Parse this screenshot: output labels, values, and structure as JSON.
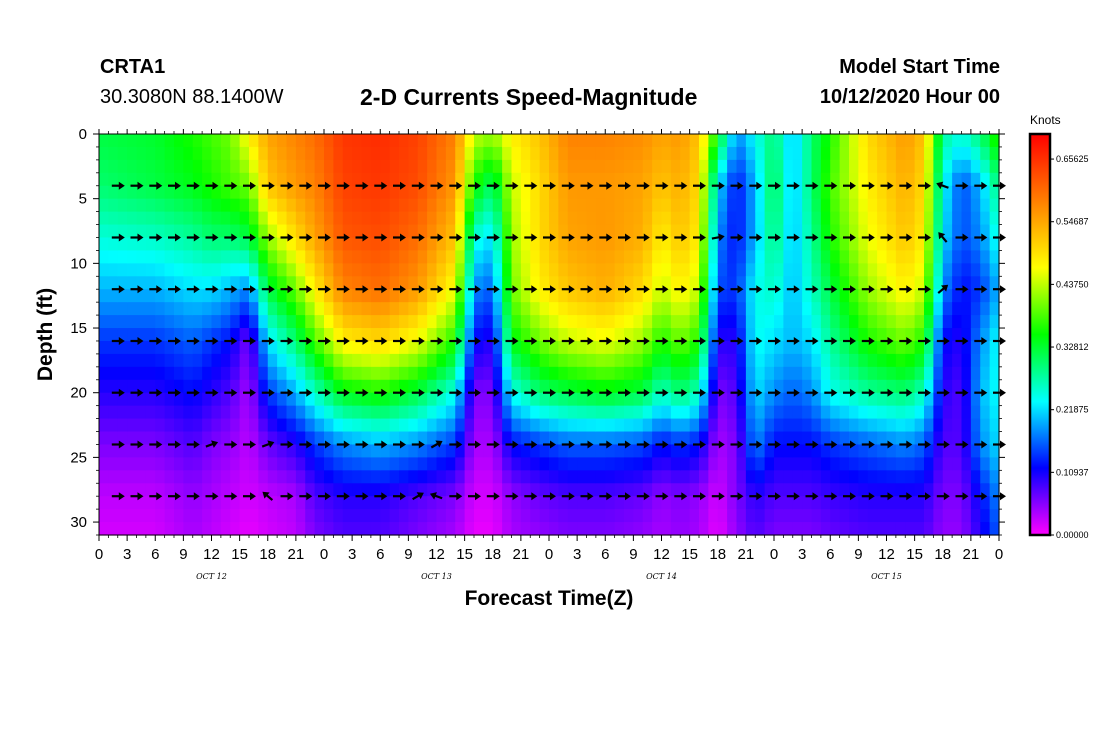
{
  "header": {
    "station_id": "CRTA1",
    "station_coords": "30.3080N 88.1400W",
    "title": "2-D Currents Speed-Magnitude",
    "model_start_label": "Model Start Time",
    "model_start_value": "10/12/2020 Hour 00"
  },
  "chart_data": {
    "type": "heatmap",
    "title": "2-D Currents Speed-Magnitude",
    "xlabel": "Forecast Time(Z)",
    "ylabel": "Depth (ft)",
    "x_range_hours": [
      0,
      96
    ],
    "x_tick_step_hours": 3,
    "x_tick_labels": [
      "0",
      "3",
      "6",
      "9",
      "12",
      "15",
      "18",
      "21",
      "0",
      "3",
      "6",
      "9",
      "12",
      "15",
      "18",
      "21",
      "0",
      "3",
      "6",
      "9",
      "12",
      "15",
      "18",
      "21",
      "0",
      "3",
      "6",
      "9",
      "12",
      "15",
      "18",
      "21",
      "0"
    ],
    "day_labels": [
      {
        "label": "OCT 12",
        "hour": 12
      },
      {
        "label": "OCT 13",
        "hour": 36
      },
      {
        "label": "OCT 14",
        "hour": 60
      },
      {
        "label": "OCT 15",
        "hour": 84
      }
    ],
    "y_range": [
      0,
      31
    ],
    "y_reversed": true,
    "y_ticks": [
      0,
      5,
      10,
      15,
      20,
      25,
      30
    ],
    "colorbar": {
      "unit": "Knots",
      "range": [
        0,
        0.7
      ],
      "tick_values": [
        0.0,
        0.109375,
        0.21875,
        0.328125,
        0.4375,
        0.546875,
        0.65625
      ],
      "tick_labels": [
        "0.00000",
        "0.10937",
        "0.21875",
        "0.32812",
        "0.43750",
        "0.54687",
        "0.65625"
      ],
      "colors": [
        "#ff00ff",
        "#0000ff",
        "#00ffff",
        "#00ff00",
        "#ffff00",
        "#ff7f00",
        "#ff0000"
      ]
    },
    "depth_layers_ft": [
      4,
      8,
      12,
      16,
      20,
      24,
      28
    ],
    "time_control_points_hours": [
      0,
      6,
      10,
      12,
      14,
      16,
      18,
      21,
      23,
      26,
      30,
      34,
      38,
      40,
      42,
      44,
      47,
      50,
      54,
      58,
      60,
      62,
      64,
      66,
      68,
      70,
      72,
      74,
      76,
      78,
      82,
      86,
      88,
      90,
      92,
      94,
      96
    ],
    "speed_knots_profile": [
      {
        "depth": 0,
        "speeds": [
          0.32,
          0.33,
          0.36,
          0.38,
          0.4,
          0.48,
          0.55,
          0.58,
          0.6,
          0.65,
          0.66,
          0.64,
          0.58,
          0.44,
          0.42,
          0.48,
          0.52,
          0.58,
          0.58,
          0.57,
          0.55,
          0.56,
          0.52,
          0.35,
          0.18,
          0.24,
          0.3,
          0.2,
          0.3,
          0.36,
          0.5,
          0.56,
          0.52,
          0.28,
          0.25,
          0.3,
          0.38
        ]
      },
      {
        "depth": 4,
        "speeds": [
          0.3,
          0.32,
          0.34,
          0.36,
          0.38,
          0.4,
          0.52,
          0.56,
          0.58,
          0.64,
          0.65,
          0.63,
          0.56,
          0.36,
          0.3,
          0.44,
          0.5,
          0.56,
          0.56,
          0.55,
          0.52,
          0.54,
          0.5,
          0.22,
          0.12,
          0.2,
          0.32,
          0.2,
          0.3,
          0.38,
          0.48,
          0.54,
          0.5,
          0.24,
          0.15,
          0.2,
          0.3
        ]
      },
      {
        "depth": 8,
        "speeds": [
          0.25,
          0.26,
          0.28,
          0.3,
          0.3,
          0.32,
          0.42,
          0.5,
          0.55,
          0.62,
          0.63,
          0.6,
          0.52,
          0.25,
          0.22,
          0.42,
          0.5,
          0.55,
          0.56,
          0.54,
          0.48,
          0.52,
          0.48,
          0.18,
          0.12,
          0.2,
          0.3,
          0.2,
          0.28,
          0.36,
          0.46,
          0.52,
          0.48,
          0.22,
          0.15,
          0.18,
          0.25
        ]
      },
      {
        "depth": 12,
        "speeds": [
          0.2,
          0.2,
          0.22,
          0.22,
          0.2,
          0.18,
          0.32,
          0.4,
          0.48,
          0.58,
          0.6,
          0.56,
          0.46,
          0.18,
          0.16,
          0.4,
          0.48,
          0.52,
          0.54,
          0.5,
          0.44,
          0.48,
          0.44,
          0.15,
          0.14,
          0.24,
          0.26,
          0.2,
          0.26,
          0.32,
          0.42,
          0.48,
          0.44,
          0.18,
          0.12,
          0.14,
          0.2
        ]
      },
      {
        "depth": 16,
        "speeds": [
          0.14,
          0.14,
          0.16,
          0.14,
          0.12,
          0.06,
          0.22,
          0.3,
          0.38,
          0.48,
          0.5,
          0.46,
          0.36,
          0.12,
          0.1,
          0.34,
          0.4,
          0.44,
          0.46,
          0.42,
          0.36,
          0.4,
          0.36,
          0.1,
          0.1,
          0.24,
          0.22,
          0.2,
          0.22,
          0.28,
          0.36,
          0.4,
          0.36,
          0.12,
          0.1,
          0.18,
          0.24
        ]
      },
      {
        "depth": 20,
        "speeds": [
          0.1,
          0.1,
          0.12,
          0.1,
          0.08,
          0.04,
          0.14,
          0.2,
          0.26,
          0.34,
          0.36,
          0.32,
          0.24,
          0.06,
          0.06,
          0.24,
          0.3,
          0.32,
          0.34,
          0.32,
          0.26,
          0.3,
          0.26,
          0.06,
          0.08,
          0.22,
          0.18,
          0.16,
          0.18,
          0.24,
          0.28,
          0.3,
          0.26,
          0.1,
          0.08,
          0.2,
          0.24
        ]
      },
      {
        "depth": 24,
        "speeds": [
          0.06,
          0.06,
          0.08,
          0.06,
          0.05,
          0.03,
          0.07,
          0.1,
          0.14,
          0.18,
          0.2,
          0.18,
          0.14,
          0.04,
          0.04,
          0.12,
          0.14,
          0.16,
          0.16,
          0.15,
          0.12,
          0.14,
          0.12,
          0.04,
          0.06,
          0.18,
          0.12,
          0.12,
          0.12,
          0.14,
          0.16,
          0.18,
          0.16,
          0.08,
          0.08,
          0.18,
          0.22
        ]
      },
      {
        "depth": 28,
        "speeds": [
          0.03,
          0.03,
          0.05,
          0.04,
          0.03,
          0.02,
          0.03,
          0.04,
          0.08,
          0.1,
          0.1,
          0.08,
          0.06,
          0.02,
          0.02,
          0.05,
          0.07,
          0.08,
          0.08,
          0.07,
          0.05,
          0.06,
          0.05,
          0.02,
          0.06,
          0.1,
          0.08,
          0.08,
          0.08,
          0.09,
          0.1,
          0.1,
          0.1,
          0.06,
          0.06,
          0.12,
          0.18
        ]
      },
      {
        "depth": 31,
        "speeds": [
          0.02,
          0.02,
          0.04,
          0.03,
          0.02,
          0.01,
          0.02,
          0.03,
          0.06,
          0.08,
          0.08,
          0.06,
          0.04,
          0.01,
          0.01,
          0.04,
          0.05,
          0.06,
          0.06,
          0.05,
          0.04,
          0.05,
          0.04,
          0.01,
          0.05,
          0.08,
          0.06,
          0.06,
          0.06,
          0.07,
          0.08,
          0.08,
          0.08,
          0.05,
          0.05,
          0.1,
          0.16
        ]
      }
    ],
    "vector_angles_deg_note": "0 = pointing right (east), negative = upward tilt",
    "vector_exceptions": [
      {
        "hour": 15,
        "depth": 20,
        "angle": -70
      },
      {
        "hour": 15,
        "depth": 24,
        "angle": 190
      },
      {
        "hour": 18,
        "depth": 28,
        "angle": 220
      },
      {
        "hour": 21,
        "depth": 28,
        "angle": -45
      },
      {
        "hour": 9,
        "depth": 28,
        "angle": -10
      },
      {
        "hour": 34,
        "depth": 28,
        "angle": -30
      },
      {
        "hour": 36,
        "depth": 28,
        "angle": 200
      },
      {
        "hour": 39,
        "depth": 28,
        "angle": 180
      },
      {
        "hour": 39,
        "depth": 24,
        "angle": 200
      },
      {
        "hour": 39,
        "depth": 20,
        "angle": 230
      },
      {
        "hour": 36,
        "depth": 24,
        "angle": -30
      },
      {
        "hour": 39,
        "depth": 16,
        "angle": -60
      },
      {
        "hour": 63,
        "depth": 28,
        "angle": -70
      },
      {
        "hour": 63,
        "depth": 24,
        "angle": -30
      },
      {
        "hour": 90,
        "depth": 8,
        "angle": 230
      },
      {
        "hour": 90,
        "depth": 4,
        "angle": 200
      },
      {
        "hour": 90,
        "depth": 12,
        "angle": -40
      },
      {
        "hour": 66,
        "depth": 8,
        "angle": -10
      },
      {
        "hour": 18,
        "depth": 24,
        "angle": -20
      },
      {
        "hour": 12,
        "depth": 24,
        "angle": -20
      }
    ],
    "vector_x_hours_step": 2,
    "vector_x_start": 0,
    "vector_x_end": 96
  }
}
